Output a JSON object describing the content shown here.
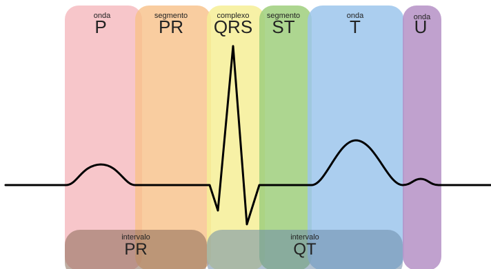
{
  "bands": [
    {
      "id": "p",
      "small": "onda",
      "big": "P",
      "color": "#f4b3b8"
    },
    {
      "id": "pr",
      "small": "segmento",
      "big": "PR",
      "color": "#f8c088"
    },
    {
      "id": "qrs",
      "small": "complexo",
      "big": "QRS",
      "color": "#f6ee96"
    },
    {
      "id": "st",
      "small": "segmento",
      "big": "ST",
      "color": "#9fcf7c"
    },
    {
      "id": "t",
      "small": "onda",
      "big": "T",
      "color": "#9cc6ec"
    },
    {
      "id": "u",
      "small": "onda",
      "big": "U",
      "color": "#b591c6"
    }
  ],
  "intervals": [
    {
      "id": "pr",
      "small": "intervalo",
      "big": "PR",
      "color": "#8a6a55"
    },
    {
      "id": "qt",
      "small": "intervalo",
      "big": "QT",
      "color": "#6b8aa8"
    }
  ],
  "trace_color": "#000000"
}
